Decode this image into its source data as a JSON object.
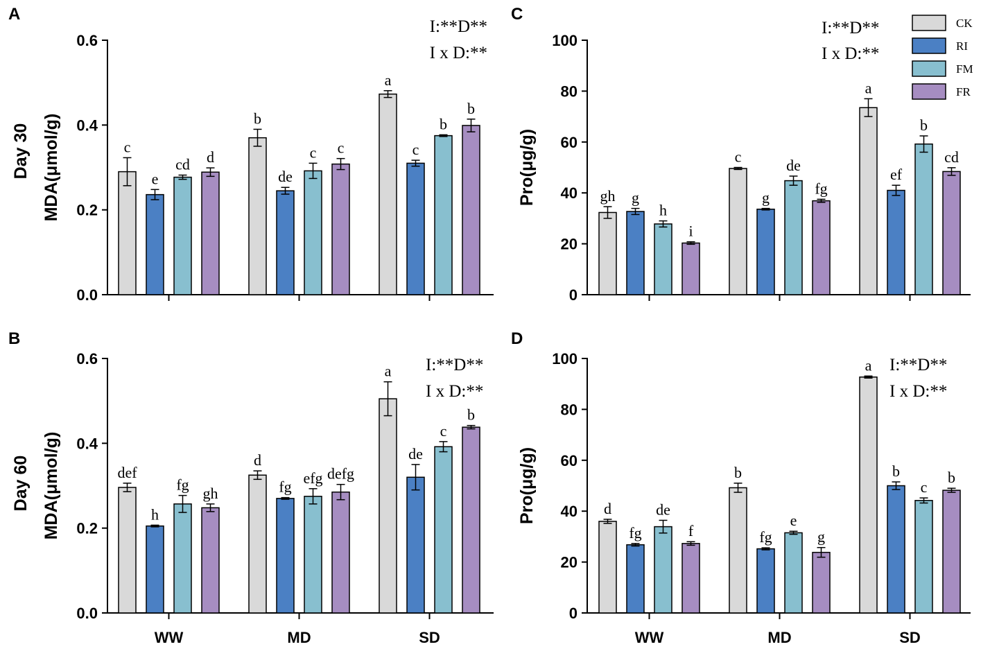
{
  "colors": {
    "CK": "#d9d9d9",
    "RI": "#4b80c4",
    "FM": "#88bfcf",
    "FR": "#a68dc1"
  },
  "legend": {
    "entries": [
      {
        "key": "CK",
        "label": "CK"
      },
      {
        "key": "RI",
        "label": "RI"
      },
      {
        "key": "FM",
        "label": "FM"
      },
      {
        "key": "FR",
        "label": "FR"
      }
    ]
  },
  "row_labels": {
    "top": "Day 30",
    "bottom": "Day 60"
  },
  "chart_data": [
    {
      "panel": "A",
      "type": "bar",
      "ylabel": "MDA(μmol/g)",
      "ylim": [
        0,
        0.6
      ],
      "yticks": [
        "0.0",
        "0.2",
        "0.4",
        "0.6"
      ],
      "categories": [
        "WW",
        "MD",
        "SD"
      ],
      "show_category_labels": false,
      "stats": [
        "I:**D**",
        "I x D:**"
      ],
      "series": [
        {
          "name": "CK",
          "values": [
            0.29,
            0.37,
            0.473
          ],
          "errors": [
            0.033,
            0.02,
            0.008
          ],
          "letters": [
            "c",
            "b",
            "a"
          ]
        },
        {
          "name": "RI",
          "values": [
            0.236,
            0.245,
            0.31
          ],
          "errors": [
            0.012,
            0.008,
            0.007
          ],
          "letters": [
            "e",
            "de",
            "c"
          ]
        },
        {
          "name": "FM",
          "values": [
            0.277,
            0.292,
            0.375
          ],
          "errors": [
            0.005,
            0.018,
            0.002
          ],
          "letters": [
            "cd",
            "c",
            "b"
          ]
        },
        {
          "name": "FR",
          "values": [
            0.289,
            0.308,
            0.399
          ],
          "errors": [
            0.01,
            0.013,
            0.015
          ],
          "letters": [
            "d",
            "c",
            "b"
          ]
        }
      ]
    },
    {
      "panel": "B",
      "type": "bar",
      "ylabel": "MDA(μmol/g)",
      "ylim": [
        0,
        0.6
      ],
      "yticks": [
        "0.0",
        "0.2",
        "0.4",
        "0.6"
      ],
      "categories": [
        "WW",
        "MD",
        "SD"
      ],
      "show_category_labels": true,
      "stats": [
        "I:**D**",
        "I x D:**"
      ],
      "series": [
        {
          "name": "CK",
          "values": [
            0.296,
            0.325,
            0.505
          ],
          "errors": [
            0.01,
            0.01,
            0.04
          ],
          "letters": [
            "def",
            "d",
            "a"
          ]
        },
        {
          "name": "RI",
          "values": [
            0.205,
            0.27,
            0.32
          ],
          "errors": [
            0.002,
            0.002,
            0.03
          ],
          "letters": [
            "h",
            "fg",
            "de"
          ]
        },
        {
          "name": "FM",
          "values": [
            0.257,
            0.275,
            0.392
          ],
          "errors": [
            0.02,
            0.018,
            0.012
          ],
          "letters": [
            "fg",
            "efg",
            "c"
          ]
        },
        {
          "name": "FR",
          "values": [
            0.248,
            0.285,
            0.438
          ],
          "errors": [
            0.009,
            0.018,
            0.004
          ],
          "letters": [
            "gh",
            "defg",
            "b"
          ]
        }
      ]
    },
    {
      "panel": "C",
      "type": "bar",
      "ylabel": "Pro(μg/g)",
      "ylim": [
        0,
        100
      ],
      "yticks": [
        "0",
        "20",
        "40",
        "60",
        "80",
        "100"
      ],
      "categories": [
        "WW",
        "MD",
        "SD"
      ],
      "show_category_labels": false,
      "stats": [
        "I:**D**",
        "I x D:**"
      ],
      "series": [
        {
          "name": "CK",
          "values": [
            32.3,
            49.6,
            73.5
          ],
          "errors": [
            2.3,
            0.4,
            3.5
          ],
          "letters": [
            "gh",
            "c",
            "a"
          ]
        },
        {
          "name": "RI",
          "values": [
            32.7,
            33.6,
            41.0
          ],
          "errors": [
            1.2,
            0.3,
            2.0
          ],
          "letters": [
            "g",
            "g",
            "ef"
          ]
        },
        {
          "name": "FM",
          "values": [
            27.8,
            44.8,
            59.2
          ],
          "errors": [
            1.2,
            1.8,
            3.2
          ],
          "letters": [
            "h",
            "de",
            "b"
          ]
        },
        {
          "name": "FR",
          "values": [
            20.3,
            36.9,
            48.4
          ],
          "errors": [
            0.5,
            0.6,
            1.5
          ],
          "letters": [
            "i",
            "fg",
            "cd"
          ]
        }
      ]
    },
    {
      "panel": "D",
      "type": "bar",
      "ylabel": "Pro(μg/g)",
      "ylim": [
        0,
        100
      ],
      "yticks": [
        "0",
        "20",
        "40",
        "60",
        "80",
        "100"
      ],
      "categories": [
        "WW",
        "MD",
        "SD"
      ],
      "show_category_labels": true,
      "stats": [
        "I:**D**",
        "I x D:**"
      ],
      "series": [
        {
          "name": "CK",
          "values": [
            36.0,
            49.2,
            92.7
          ],
          "errors": [
            0.8,
            1.8,
            0.4
          ],
          "letters": [
            "d",
            "b",
            "a"
          ]
        },
        {
          "name": "RI",
          "values": [
            26.8,
            25.2,
            50.0
          ],
          "errors": [
            0.5,
            0.4,
            1.5
          ],
          "letters": [
            "fg",
            "fg",
            "b"
          ]
        },
        {
          "name": "FM",
          "values": [
            33.9,
            31.5,
            44.2
          ],
          "errors": [
            2.5,
            0.6,
            1.0
          ],
          "letters": [
            "de",
            "e",
            "c"
          ]
        },
        {
          "name": "FR",
          "values": [
            27.3,
            23.8,
            48.2
          ],
          "errors": [
            0.7,
            1.9,
            0.8
          ],
          "letters": [
            "f",
            "g",
            "b"
          ]
        }
      ]
    }
  ]
}
